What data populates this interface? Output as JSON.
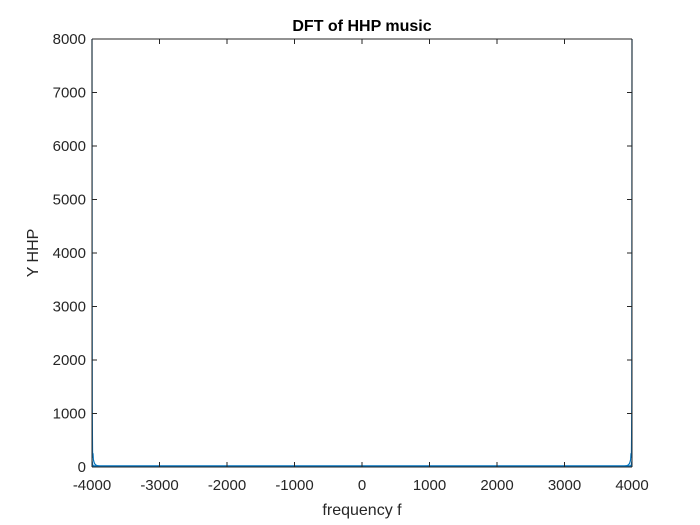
{
  "chart_data": {
    "type": "line",
    "title": "DFT of HHP music",
    "xlabel": "frequency f",
    "ylabel": "Y HHP",
    "xlim": [
      -4000,
      4000
    ],
    "ylim": [
      0,
      8000
    ],
    "xticks": [
      -4000,
      -3000,
      -2000,
      -1000,
      0,
      1000,
      2000,
      3000,
      4000
    ],
    "xtick_labels": [
      "-4000",
      "-3000",
      "-2000",
      "-1000",
      "0",
      "1000",
      "2000",
      "3000",
      "4000"
    ],
    "yticks": [
      0,
      1000,
      2000,
      3000,
      4000,
      5000,
      6000,
      7000,
      8000
    ],
    "ytick_labels": [
      "0",
      "1000",
      "2000",
      "3000",
      "4000",
      "5000",
      "6000",
      "7000",
      "8000"
    ],
    "grid": false,
    "series": [
      {
        "color": "#0072BD",
        "x": [
          -4000,
          -3998,
          -3996,
          -3994,
          -3992,
          -3990,
          -3985,
          -3980,
          -3970,
          -3960,
          -3950,
          -3940,
          -3930,
          -3920,
          -3900,
          -3880,
          -3850,
          -3800,
          -3700,
          -3500,
          -3000,
          -2500,
          -2000,
          -1500,
          -1000,
          -500,
          -200,
          0,
          200,
          500,
          1000,
          1500,
          2000,
          2500,
          3000,
          3500,
          3700,
          3800,
          3850,
          3880,
          3900,
          3920,
          3930,
          3940,
          3950,
          3960,
          3970,
          3980,
          3985,
          3990,
          3992,
          3994,
          3996,
          3998,
          4000
        ],
        "y": [
          8000,
          3500,
          1200,
          600,
          300,
          180,
          250,
          140,
          90,
          60,
          45,
          35,
          30,
          25,
          20,
          15,
          12,
          10,
          8,
          6,
          4,
          3,
          3,
          4,
          5,
          8,
          12,
          15,
          12,
          8,
          5,
          4,
          3,
          3,
          4,
          6,
          8,
          10,
          12,
          15,
          20,
          25,
          30,
          35,
          45,
          60,
          90,
          140,
          250,
          180,
          300,
          600,
          1200,
          3500,
          8000
        ]
      }
    ]
  }
}
